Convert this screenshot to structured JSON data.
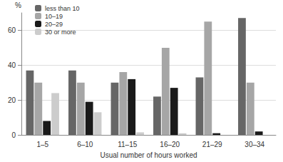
{
  "chart_data": {
    "type": "bar",
    "categories": [
      "1–5",
      "6–10",
      "11–15",
      "16–20",
      "21–29",
      "30–34"
    ],
    "series": [
      {
        "name": "less than 10",
        "color": "#666666",
        "values": [
          37,
          37,
          30,
          22,
          33,
          67
        ]
      },
      {
        "name": "10–19",
        "color": "#a6a6a6",
        "values": [
          30,
          30,
          36,
          50,
          65,
          30
        ]
      },
      {
        "name": "20–29",
        "color": "#1a1a1a",
        "values": [
          8,
          19,
          32,
          27,
          1,
          2
        ]
      },
      {
        "name": "30 or more",
        "color": "#cccccc",
        "values": [
          24,
          13,
          1.5,
          1,
          0,
          0
        ]
      }
    ],
    "x_label": "Usual number of hours worked",
    "y_label": "%",
    "ylim": [
      0,
      70
    ],
    "yticks": [
      0,
      20,
      40,
      60
    ],
    "grid": true,
    "legend": "top-left"
  }
}
